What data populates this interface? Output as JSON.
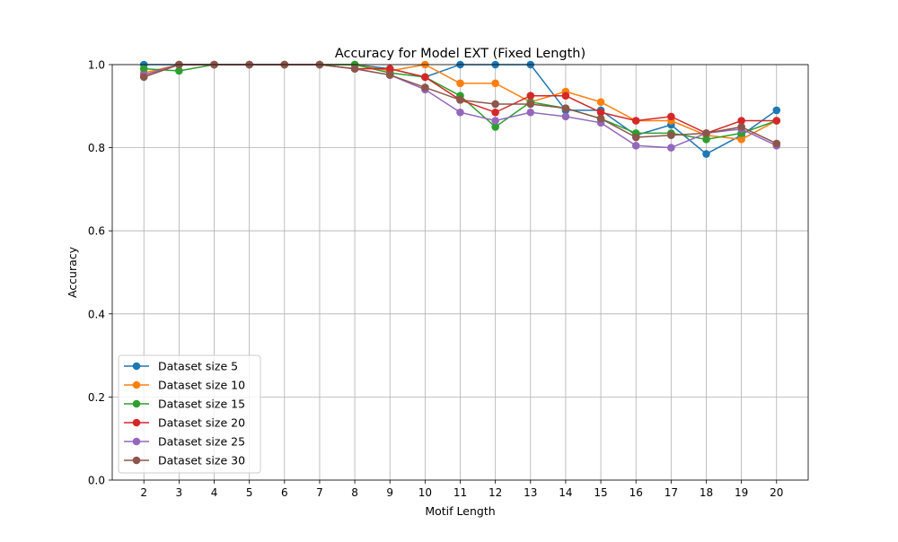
{
  "chart_data": {
    "type": "line",
    "title": "Accuracy for Model EXT (Fixed Length)",
    "xlabel": "Motif Length",
    "ylabel": "Accuracy",
    "x": [
      2,
      3,
      4,
      5,
      6,
      7,
      8,
      9,
      10,
      11,
      12,
      13,
      14,
      15,
      16,
      17,
      18,
      19,
      20
    ],
    "xlim": [
      1.1,
      20.9
    ],
    "ylim": [
      0.0,
      1.0
    ],
    "yticks": [
      0.0,
      0.2,
      0.4,
      0.6,
      0.8,
      1.0
    ],
    "ytick_labels": [
      "0.0",
      "0.2",
      "0.4",
      "0.6",
      "0.8",
      "1.0"
    ],
    "xtick_labels": [
      "2",
      "3",
      "4",
      "5",
      "6",
      "7",
      "8",
      "9",
      "10",
      "11",
      "12",
      "13",
      "14",
      "15",
      "16",
      "17",
      "18",
      "19",
      "20"
    ],
    "grid": true,
    "legend_position": "lower-left",
    "series": [
      {
        "name": "Dataset size 5",
        "color": "#1f77b4",
        "values": [
          1.0,
          1.0,
          1.0,
          1.0,
          1.0,
          1.0,
          1.0,
          0.99,
          0.97,
          1.0,
          1.0,
          1.0,
          0.89,
          0.89,
          0.83,
          0.855,
          0.785,
          0.83,
          0.89
        ]
      },
      {
        "name": "Dataset size 10",
        "color": "#ff7f0e",
        "values": [
          0.98,
          1.0,
          1.0,
          1.0,
          1.0,
          1.0,
          1.0,
          0.985,
          1.0,
          0.955,
          0.955,
          0.91,
          0.935,
          0.91,
          0.865,
          0.865,
          0.83,
          0.82,
          0.865
        ]
      },
      {
        "name": "Dataset size 15",
        "color": "#2ca02c",
        "values": [
          0.99,
          0.985,
          1.0,
          1.0,
          1.0,
          1.0,
          1.0,
          0.98,
          0.97,
          0.925,
          0.85,
          0.91,
          0.895,
          0.87,
          0.835,
          0.835,
          0.82,
          0.835,
          0.865
        ]
      },
      {
        "name": "Dataset size 20",
        "color": "#d62728",
        "values": [
          0.975,
          1.0,
          1.0,
          1.0,
          1.0,
          1.0,
          0.99,
          0.99,
          0.97,
          0.915,
          0.885,
          0.925,
          0.925,
          0.885,
          0.865,
          0.875,
          0.835,
          0.865,
          0.865
        ]
      },
      {
        "name": "Dataset size 25",
        "color": "#9467bd",
        "values": [
          0.975,
          1.0,
          1.0,
          1.0,
          1.0,
          1.0,
          0.99,
          0.975,
          0.94,
          0.885,
          0.865,
          0.885,
          0.875,
          0.86,
          0.805,
          0.8,
          0.835,
          0.845,
          0.805
        ]
      },
      {
        "name": "Dataset size 30",
        "color": "#8c564b",
        "values": [
          0.97,
          1.0,
          1.0,
          1.0,
          1.0,
          1.0,
          0.99,
          0.975,
          0.945,
          0.915,
          0.905,
          0.905,
          0.895,
          0.87,
          0.825,
          0.83,
          0.835,
          0.85,
          0.81
        ]
      }
    ]
  }
}
